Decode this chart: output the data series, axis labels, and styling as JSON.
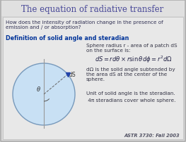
{
  "title": "The equation of radiative transfer",
  "title_color": "#4a4a99",
  "outer_bg": "#c8c8c8",
  "inner_bg": "#e8e8e8",
  "inner_bg2": "#f0f0f0",
  "subtitle": "How does the intensity of radiation change in the presence of\nemission and / or absorption?",
  "subtitle_color": "#333355",
  "section_header": "Definition of solid angle and steradian",
  "section_color": "#003399",
  "right_text1": "Sphere radius r - area of a patch dS\non the surface is:",
  "right_text2": "dΩ is the solid angle subtended by\nthe area dS at the center of the\nsphere.",
  "right_text3": "Unit of solid angle is the steradian.",
  "right_text4": " 4π steradians cover whole sphere.",
  "footer": "ASTR 3730: Fall 2003",
  "sphere_color": "#c8e0f4",
  "sphere_edge_color": "#7799bb",
  "formula": "$dS = rd\\theta \\times r\\sin\\theta d\\phi = r^2 d\\Omega$",
  "text_color": "#333344",
  "figw": 2.63,
  "figh": 2.03,
  "dpi": 100
}
